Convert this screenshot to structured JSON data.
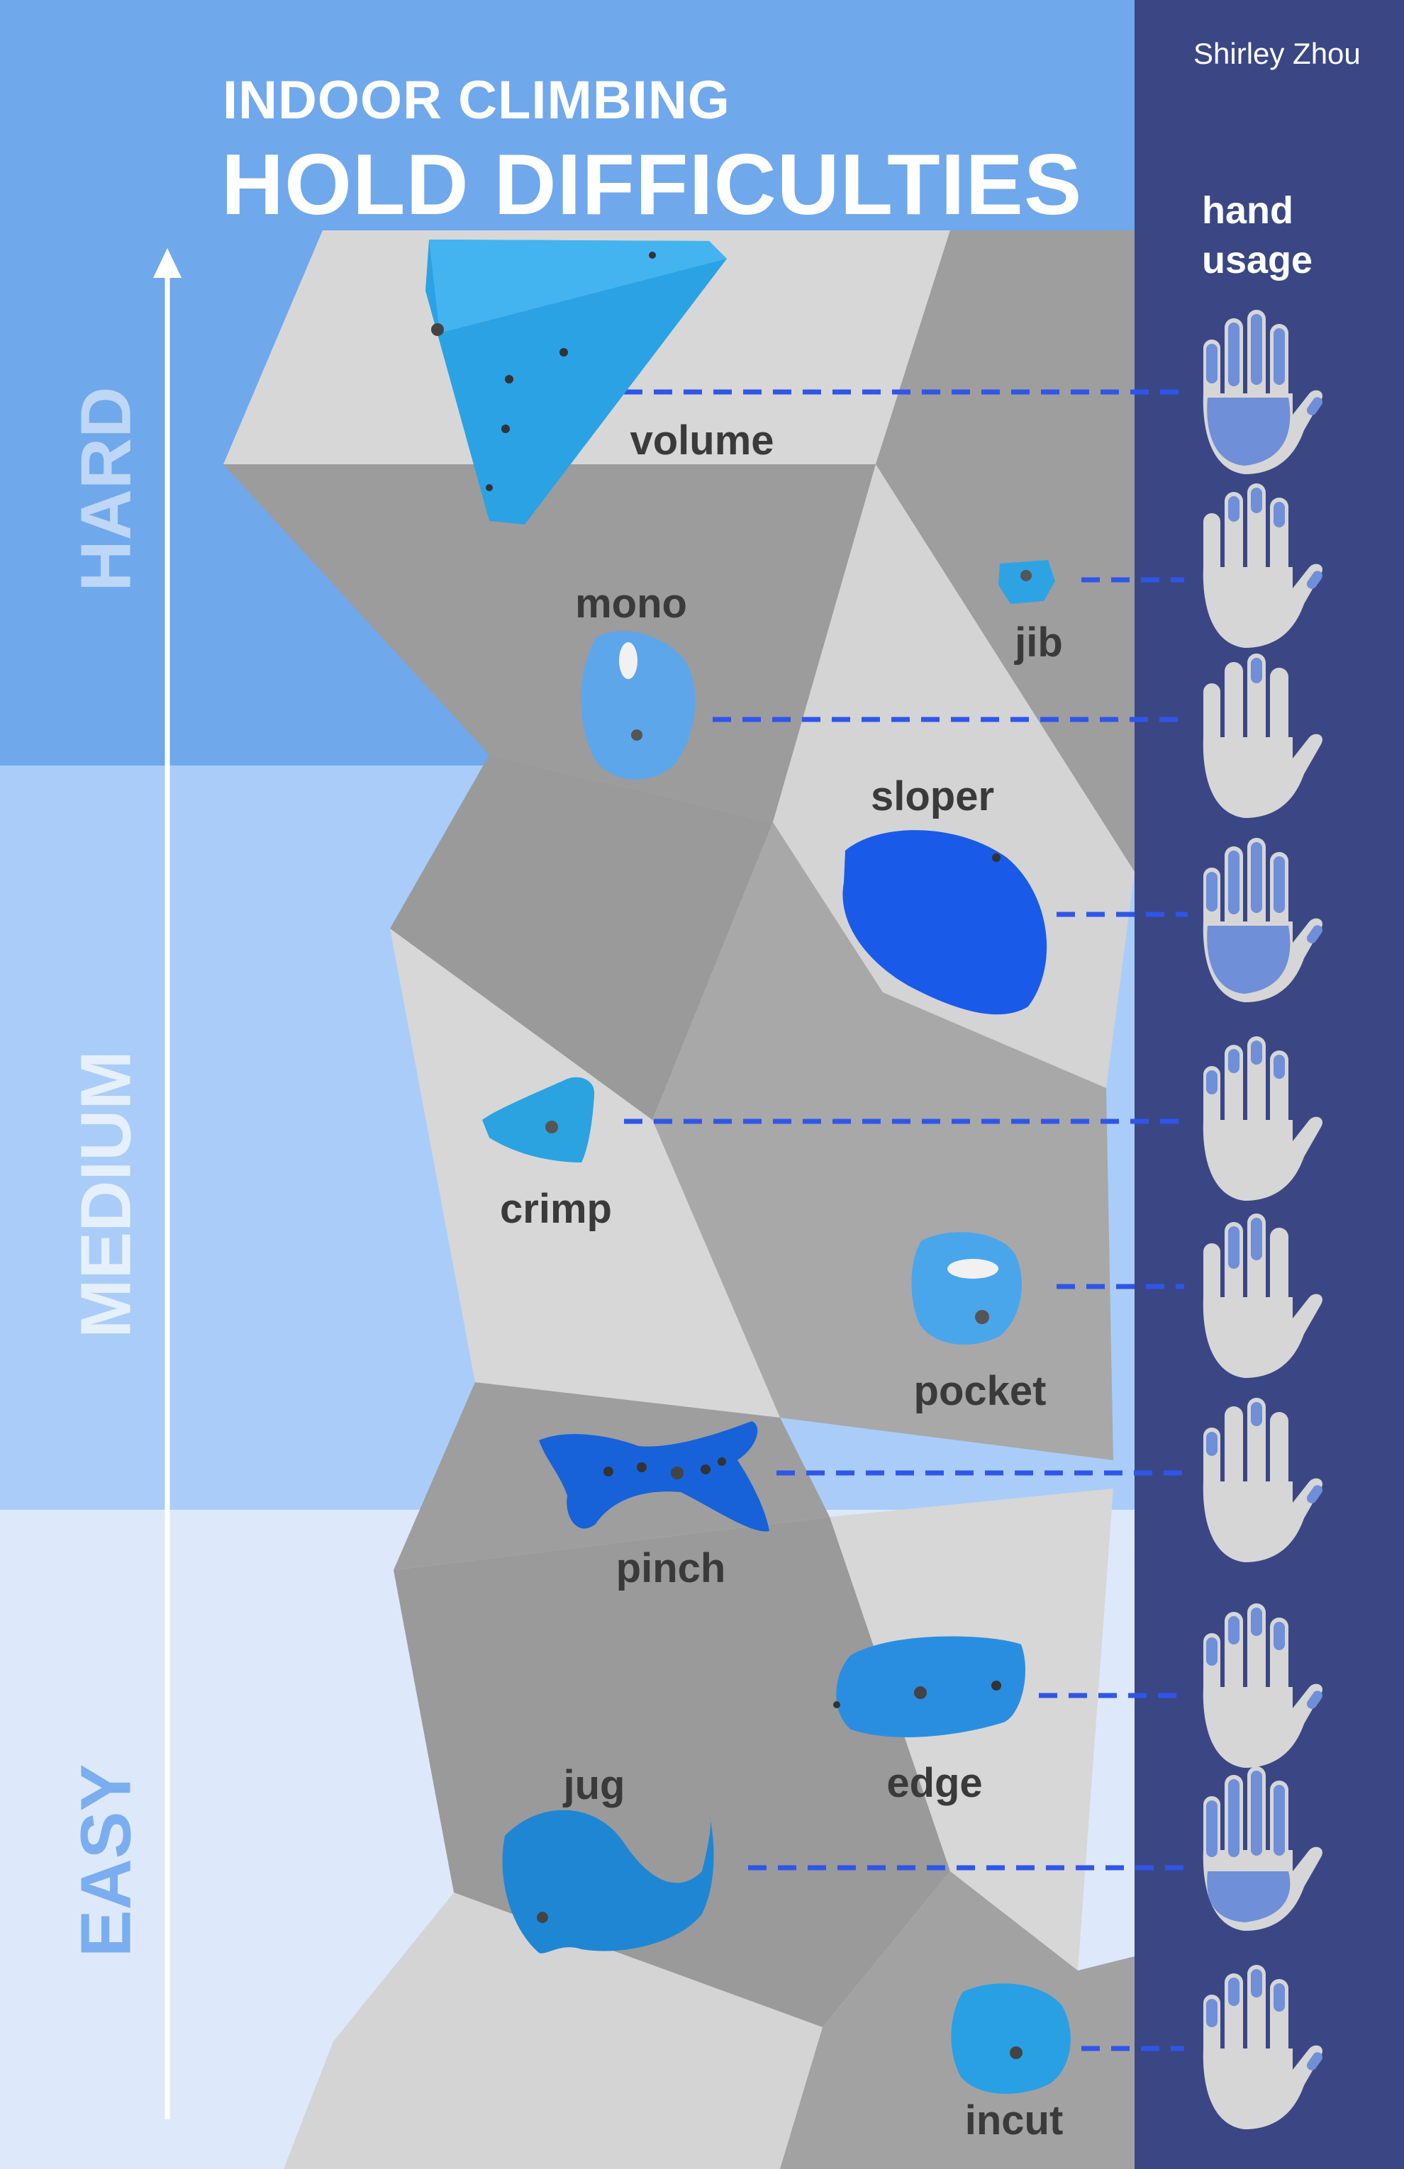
{
  "title": {
    "line1": "INDOOR CLIMBING",
    "line2": "HOLD DIFFICULTIES"
  },
  "author": "Shirley Zhou",
  "hand_usage_heading": {
    "line1": "hand",
    "line2": "usage"
  },
  "difficulty_levels": {
    "hard": "HARD",
    "medium": "MEDIUM",
    "easy": "EASY"
  },
  "holds": [
    {
      "name": "volume",
      "hand_usage": "full-palm"
    },
    {
      "name": "jib",
      "hand_usage": "two-fingertips"
    },
    {
      "name": "mono",
      "hand_usage": "one-fingertip"
    },
    {
      "name": "sloper",
      "hand_usage": "full-palm"
    },
    {
      "name": "crimp",
      "hand_usage": "fingertips"
    },
    {
      "name": "pocket",
      "hand_usage": "two-fingers"
    },
    {
      "name": "pinch",
      "hand_usage": "thumb-and-fingers"
    },
    {
      "name": "edge",
      "hand_usage": "fingers-and-thumb"
    },
    {
      "name": "jug",
      "hand_usage": "full-hand"
    },
    {
      "name": "incut",
      "hand_usage": "fingers-and-thumb"
    }
  ],
  "colors": {
    "hard_band": "#70a8ec",
    "medium_band": "#a9cdf8",
    "easy_band": "#dde9fa",
    "right_panel": "#3a4784",
    "wall_light": "#d7d7d7",
    "wall_dark": "#9a9a9a",
    "hold_blue": "#2a9be0",
    "dash_line": "#2f56e8",
    "hand_fill": "#d6d6d6",
    "hand_highlight": "#6f8fd8"
  }
}
